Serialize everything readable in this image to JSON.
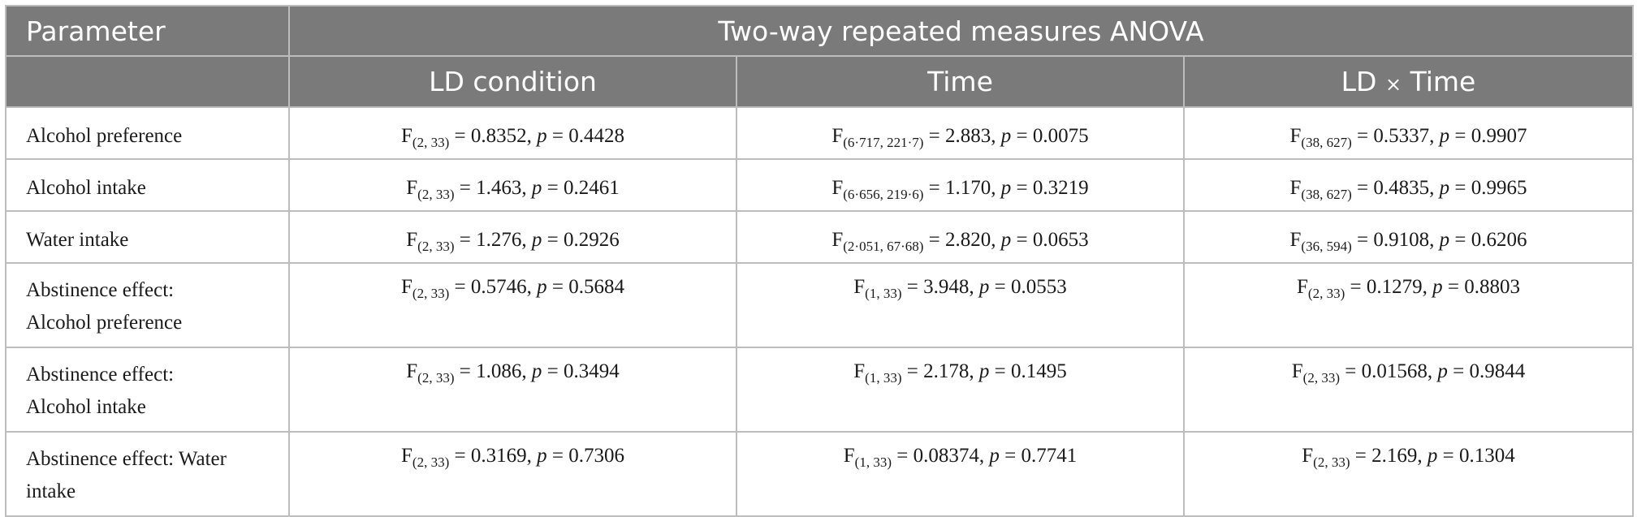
{
  "header": {
    "parameter": "Parameter",
    "group": "Two-way repeated measures ANOVA",
    "col_ld_condition": "LD condition",
    "col_time": "Time",
    "col_interaction_a": "LD ",
    "col_interaction_times": "×",
    "col_interaction_b": " Time"
  },
  "rows": [
    {
      "parameter": "Alcohol preference",
      "ld": {
        "f": "F",
        "df": "(2,  33)",
        "val": " = 0.8352, ",
        "p": "p",
        "pval": " = 0.4428"
      },
      "time": {
        "f": "F",
        "df": "(6·717,  221·7)",
        "val": " = 2.883, ",
        "p": "p",
        "pval": " = 0.0075"
      },
      "inter": {
        "f": "F",
        "df": "(38,  627)",
        "val": " = 0.5337, ",
        "p": "p",
        "pval": " = 0.9907"
      }
    },
    {
      "parameter": "Alcohol intake",
      "ld": {
        "f": "F",
        "df": "(2,  33)",
        "val": " = 1.463, ",
        "p": "p",
        "pval": " = 0.2461"
      },
      "time": {
        "f": "F",
        "df": "(6·656,  219·6)",
        "val": " = 1.170, ",
        "p": "p",
        "pval": " = 0.3219"
      },
      "inter": {
        "f": "F",
        "df": "(38,  627)",
        "val": " = 0.4835, ",
        "p": "p",
        "pval": " = 0.9965"
      }
    },
    {
      "parameter": "Water intake",
      "ld": {
        "f": "F",
        "df": "(2,  33)",
        "val": " = 1.276, ",
        "p": "p",
        "pval": " = 0.2926"
      },
      "time": {
        "f": "F",
        "df": "(2·051,  67·68)",
        "val": " = 2.820, ",
        "p": "p",
        "pval": " = 0.0653"
      },
      "inter": {
        "f": "F",
        "df": "(36,  594)",
        "val": " = 0.9108, ",
        "p": "p",
        "pval": " = 0.6206"
      }
    },
    {
      "parameter_line1": "Abstinence effect:",
      "parameter_line2": "Alcohol preference",
      "ld": {
        "f": "F",
        "df": "(2,  33)",
        "val": " = 0.5746, ",
        "p": "p",
        "pval": " = 0.5684"
      },
      "time": {
        "f": "F",
        "df": "(1,  33)",
        "val": " = 3.948, ",
        "p": "p",
        "pval": " = 0.0553"
      },
      "inter": {
        "f": "F",
        "df": "(2,  33)",
        "val": " = 0.1279, ",
        "p": "p",
        "pval": " = 0.8803"
      }
    },
    {
      "parameter_line1": "Abstinence effect:",
      "parameter_line2": "Alcohol intake",
      "ld": {
        "f": "F",
        "df": "(2,  33)",
        "val": " = 1.086, ",
        "p": "p",
        "pval": " = 0.3494"
      },
      "time": {
        "f": "F",
        "df": "(1,  33)",
        "val": " = 2.178, ",
        "p": "p",
        "pval": " = 0.1495"
      },
      "inter": {
        "f": "F",
        "df": "(2,  33)",
        "val": " = 0.01568, ",
        "p": "p",
        "pval": " = 0.9844"
      }
    },
    {
      "parameter_line1": "Abstinence effect: Water",
      "parameter_line2": "intake",
      "ld": {
        "f": "F",
        "df": "(2,  33)",
        "val": " = 0.3169, ",
        "p": "p",
        "pval": " = 0.7306"
      },
      "time": {
        "f": "F",
        "df": "(1,  33)",
        "val": " = 0.08374, ",
        "p": "p",
        "pval": " = 0.7741"
      },
      "inter": {
        "f": "F",
        "df": "(2,  33)",
        "val": " = 2.169, ",
        "p": "p",
        "pval": " = 0.1304"
      }
    }
  ],
  "colors": {
    "header_bg": "#7a7a7a",
    "header_text": "#ffffff",
    "border": "#bdbdbd",
    "body_text": "#1a1a1a"
  }
}
